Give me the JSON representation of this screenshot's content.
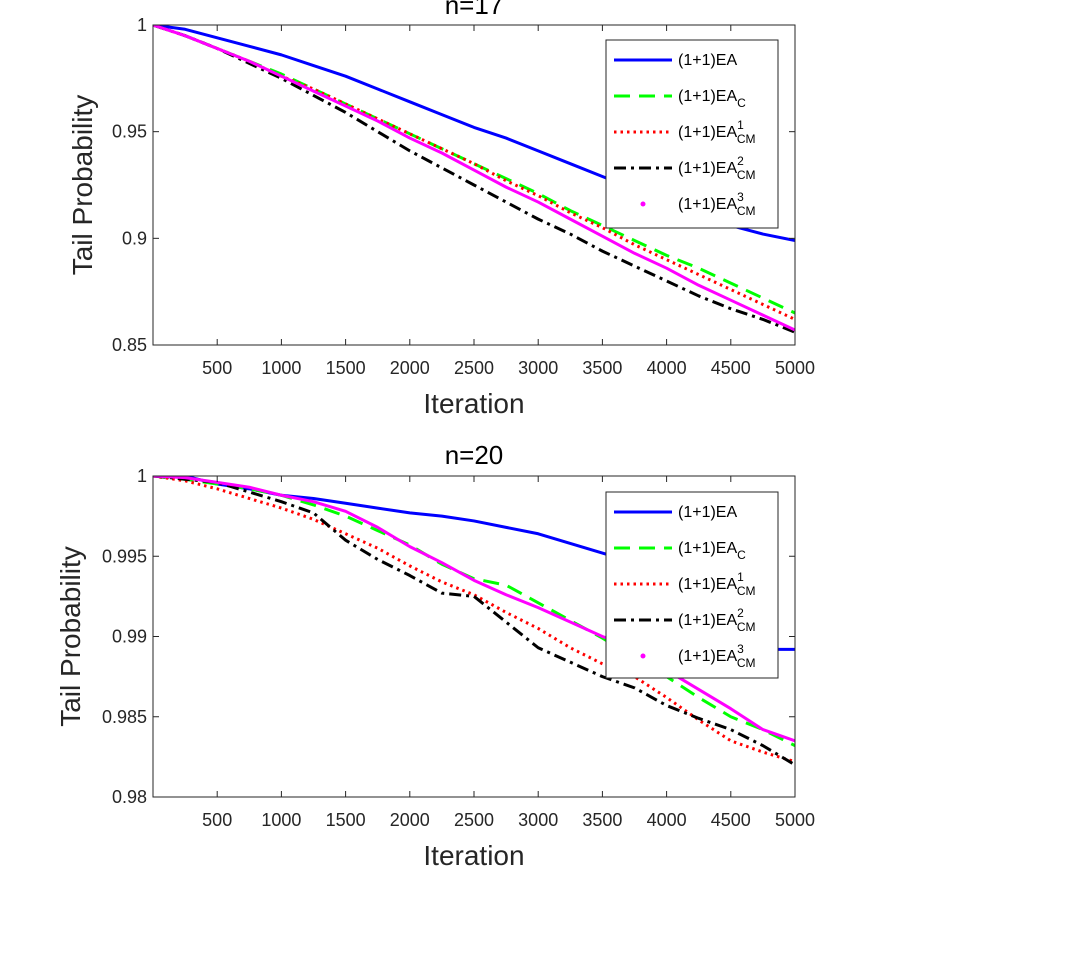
{
  "chart_data": [
    {
      "type": "line",
      "title": "n=17",
      "xlabel": "Iteration",
      "ylabel": "Tail Probability",
      "xlim": [
        0,
        5000
      ],
      "ylim": [
        0.85,
        1
      ],
      "xticks": [
        500,
        1000,
        1500,
        2000,
        2500,
        3000,
        3500,
        4000,
        4500,
        5000
      ],
      "xtick_labels": [
        "500",
        "1000",
        "1500",
        "2000",
        "2500",
        "3000",
        "3500",
        "4000",
        "4500",
        "5000"
      ],
      "yticks": [
        0.85,
        0.9,
        0.95,
        1
      ],
      "ytick_labels": [
        "0.85",
        "0.9",
        "0.95",
        "1"
      ],
      "legend_position": "top-right",
      "series": [
        {
          "name": "(1+1)EA",
          "label_base": "(1+1)EA",
          "sub": "",
          "sup": "",
          "color": "#0000ff",
          "style": "solid",
          "x": [
            0,
            250,
            500,
            750,
            1000,
            1250,
            1500,
            1750,
            2000,
            2250,
            2500,
            2750,
            3000,
            3250,
            3500,
            3750,
            4000,
            4250,
            4500,
            4750,
            5000
          ],
          "y": [
            1.0,
            0.998,
            0.994,
            0.99,
            0.986,
            0.981,
            0.976,
            0.97,
            0.964,
            0.958,
            0.952,
            0.947,
            0.941,
            0.935,
            0.929,
            0.923,
            0.917,
            0.911,
            0.906,
            0.902,
            0.899
          ]
        },
        {
          "name": "(1+1)EA_C",
          "label_base": "(1+1)EA",
          "sub": "C",
          "sup": "",
          "color": "#00ff00",
          "style": "dash",
          "x": [
            0,
            250,
            500,
            750,
            1000,
            1250,
            1500,
            1750,
            2000,
            2250,
            2500,
            2750,
            3000,
            3250,
            3500,
            3750,
            4000,
            4250,
            4500,
            4750,
            5000
          ],
          "y": [
            1.0,
            0.995,
            0.989,
            0.983,
            0.977,
            0.97,
            0.963,
            0.956,
            0.949,
            0.942,
            0.935,
            0.928,
            0.921,
            0.913,
            0.906,
            0.899,
            0.892,
            0.886,
            0.879,
            0.872,
            0.865
          ]
        },
        {
          "name": "(1+1)EA_CM^1",
          "label_base": "(1+1)EA",
          "sub": "CM",
          "sup": "1",
          "color": "#ff0000",
          "style": "dot",
          "x": [
            0,
            250,
            500,
            750,
            1000,
            1250,
            1500,
            1750,
            2000,
            2250,
            2500,
            2750,
            3000,
            3250,
            3500,
            3750,
            4000,
            4250,
            4500,
            4750,
            5000
          ],
          "y": [
            1.0,
            0.995,
            0.989,
            0.983,
            0.976,
            0.97,
            0.963,
            0.956,
            0.949,
            0.942,
            0.935,
            0.927,
            0.92,
            0.912,
            0.905,
            0.897,
            0.89,
            0.883,
            0.876,
            0.869,
            0.862
          ]
        },
        {
          "name": "(1+1)EA_CM^2",
          "label_base": "(1+1)EA",
          "sub": "CM",
          "sup": "2",
          "color": "#000000",
          "style": "dashdot",
          "x": [
            0,
            250,
            500,
            750,
            1000,
            1250,
            1500,
            1750,
            2000,
            2250,
            2500,
            2750,
            3000,
            3250,
            3500,
            3750,
            4000,
            4250,
            4500,
            4750,
            5000
          ],
          "y": [
            1.0,
            0.995,
            0.989,
            0.982,
            0.975,
            0.967,
            0.959,
            0.95,
            0.941,
            0.933,
            0.925,
            0.917,
            0.909,
            0.902,
            0.894,
            0.887,
            0.88,
            0.873,
            0.867,
            0.862,
            0.856
          ]
        },
        {
          "name": "(1+1)EA_CM^3",
          "label_base": "(1+1)EA",
          "sub": "CM",
          "sup": "3",
          "color": "#ff00ff",
          "style": "solid",
          "x": [
            0,
            250,
            500,
            750,
            1000,
            1250,
            1500,
            1750,
            2000,
            2250,
            2500,
            2750,
            3000,
            3250,
            3500,
            3750,
            4000,
            4250,
            4500,
            4750,
            5000
          ],
          "y": [
            1.0,
            0.995,
            0.989,
            0.983,
            0.976,
            0.969,
            0.962,
            0.955,
            0.947,
            0.94,
            0.932,
            0.924,
            0.917,
            0.909,
            0.901,
            0.893,
            0.886,
            0.878,
            0.871,
            0.864,
            0.857
          ]
        }
      ]
    },
    {
      "type": "line",
      "title": "n=20",
      "xlabel": "Iteration",
      "ylabel": "Tail Probability",
      "xlim": [
        0,
        5000
      ],
      "ylim": [
        0.98,
        1
      ],
      "xticks": [
        500,
        1000,
        1500,
        2000,
        2500,
        3000,
        3500,
        4000,
        4500,
        5000
      ],
      "xtick_labels": [
        "500",
        "1000",
        "1500",
        "2000",
        "2500",
        "3000",
        "3500",
        "4000",
        "4500",
        "5000"
      ],
      "yticks": [
        0.98,
        0.985,
        0.99,
        0.995,
        1
      ],
      "ytick_labels": [
        "0.98",
        "0.985",
        "0.99",
        "0.995",
        "1"
      ],
      "legend_position": "top-right",
      "series": [
        {
          "name": "(1+1)EA",
          "label_base": "(1+1)EA",
          "sub": "",
          "sup": "",
          "color": "#0000ff",
          "style": "solid",
          "x": [
            0,
            250,
            500,
            750,
            1000,
            1250,
            1500,
            1750,
            2000,
            2250,
            2500,
            2750,
            3000,
            3250,
            3500,
            3750,
            4000,
            4250,
            4500,
            4750,
            4850,
            5000
          ],
          "y": [
            1.0,
            1.0,
            0.9995,
            0.9992,
            0.9988,
            0.9986,
            0.9983,
            0.998,
            0.9977,
            0.9975,
            0.9972,
            0.9968,
            0.9964,
            0.9958,
            0.9952,
            0.9946,
            0.9937,
            0.9925,
            0.9913,
            0.9902,
            0.9892,
            0.9892
          ]
        },
        {
          "name": "(1+1)EA_C",
          "label_base": "(1+1)EA",
          "sub": "C",
          "sup": "",
          "color": "#00ff00",
          "style": "dash",
          "x": [
            0,
            250,
            500,
            750,
            1000,
            1250,
            1500,
            1750,
            2000,
            2250,
            2500,
            2750,
            3000,
            3250,
            3500,
            3750,
            4000,
            4250,
            4500,
            4750,
            5000
          ],
          "y": [
            1.0,
            0.9998,
            0.9995,
            0.9992,
            0.9988,
            0.9982,
            0.9975,
            0.9966,
            0.9957,
            0.9945,
            0.9936,
            0.9932,
            0.9921,
            0.991,
            0.9899,
            0.9887,
            0.9875,
            0.9862,
            0.985,
            0.9842,
            0.9832
          ]
        },
        {
          "name": "(1+1)EA_CM^1",
          "label_base": "(1+1)EA",
          "sub": "CM",
          "sup": "1",
          "color": "#ff0000",
          "style": "dot",
          "x": [
            0,
            250,
            500,
            750,
            1000,
            1250,
            1500,
            1750,
            2000,
            2250,
            2500,
            2750,
            3000,
            3250,
            3500,
            3750,
            4000,
            4250,
            4500,
            4750,
            5000
          ],
          "y": [
            1.0,
            0.9997,
            0.9992,
            0.9986,
            0.998,
            0.9973,
            0.9964,
            0.9955,
            0.9944,
            0.9934,
            0.9926,
            0.9915,
            0.9905,
            0.9893,
            0.9883,
            0.9875,
            0.9862,
            0.9848,
            0.9835,
            0.9828,
            0.9822
          ]
        },
        {
          "name": "(1+1)EA_CM^2",
          "label_base": "(1+1)EA",
          "sub": "CM",
          "sup": "2",
          "color": "#000000",
          "style": "dashdot",
          "x": [
            0,
            250,
            500,
            750,
            1000,
            1250,
            1500,
            1750,
            2000,
            2250,
            2500,
            2750,
            3000,
            3250,
            3500,
            3750,
            4000,
            4250,
            4500,
            4750,
            5000
          ],
          "y": [
            1.0,
            0.9998,
            0.9996,
            0.999,
            0.9984,
            0.9977,
            0.996,
            0.9948,
            0.9938,
            0.9927,
            0.9925,
            0.9909,
            0.9893,
            0.9884,
            0.9875,
            0.9868,
            0.9857,
            0.9849,
            0.9842,
            0.9832,
            0.982
          ]
        },
        {
          "name": "(1+1)EA_CM^3",
          "label_base": "(1+1)EA",
          "sub": "CM",
          "sup": "3",
          "color": "#ff00ff",
          "style": "solid",
          "x": [
            0,
            250,
            500,
            750,
            1000,
            1250,
            1500,
            1750,
            2000,
            2250,
            2500,
            2750,
            3000,
            3250,
            3500,
            3750,
            4000,
            4250,
            4500,
            4750,
            5000
          ],
          "y": [
            1.0,
            0.9999,
            0.9996,
            0.9993,
            0.9988,
            0.9984,
            0.9978,
            0.9968,
            0.9956,
            0.9946,
            0.9935,
            0.9926,
            0.9918,
            0.9909,
            0.99,
            0.9893,
            0.9879,
            0.9867,
            0.9855,
            0.9842,
            0.9835
          ]
        }
      ]
    }
  ]
}
